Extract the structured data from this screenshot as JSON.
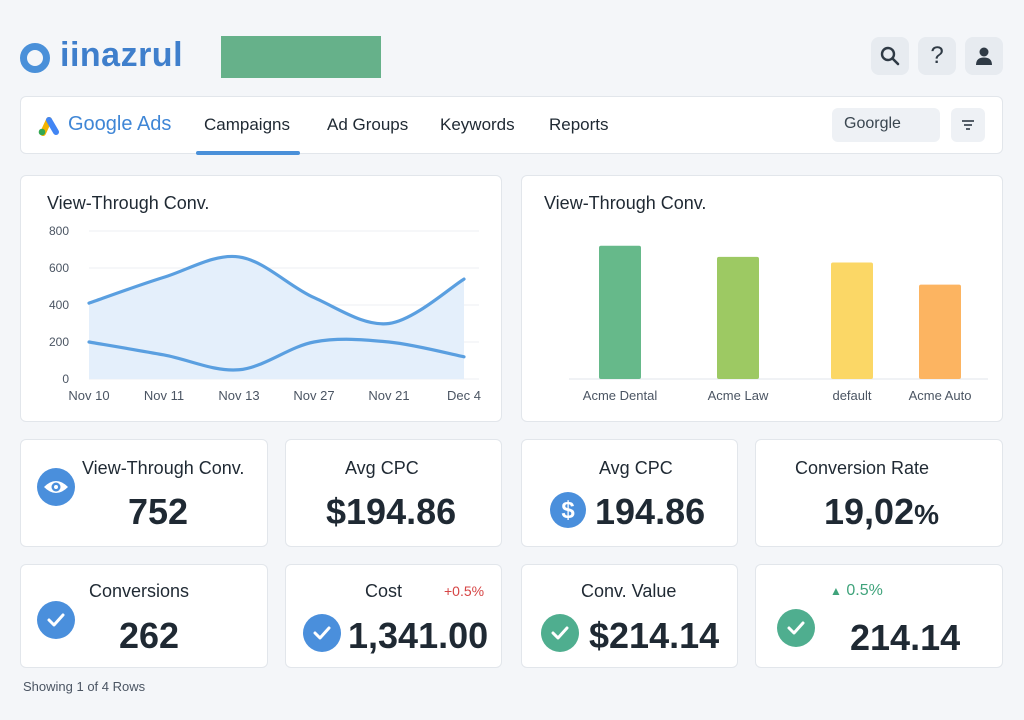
{
  "app": {
    "name": "iinazrul"
  },
  "header": {
    "icons": [
      "search-icon",
      "help-icon",
      "user-icon"
    ],
    "help_glyph": "?"
  },
  "nav": {
    "brand": "Google Ads",
    "tabs": [
      "Campaigns",
      "Ad Groups",
      "Keywords",
      "Reports"
    ],
    "active_tab": "Campaigns",
    "account_select": "Goorgle"
  },
  "line_chart": {
    "title": "View-Through Conv.",
    "chart_data": {
      "type": "line",
      "x": [
        "Nov 10",
        "Nov 11",
        "Nov 13",
        "Nov 27",
        "Nov 21",
        "Dec 4"
      ],
      "y_ticks": [
        0,
        200,
        400,
        600,
        800
      ],
      "ylim": [
        0,
        800
      ],
      "grid": true,
      "series": [
        {
          "values": [
            410,
            550,
            660,
            440,
            300,
            540
          ],
          "fill": true
        },
        {
          "values": [
            200,
            130,
            50,
            200,
            200,
            120
          ]
        }
      ],
      "colors": {
        "line": "#5a9fe0",
        "area": "#e4effb"
      }
    }
  },
  "bar_chart": {
    "title": "View-Through Conv.",
    "chart_data": {
      "type": "bar",
      "categories": [
        "Acme Dental",
        "Acme Law",
        "default",
        "Acme Auto"
      ],
      "values": [
        720,
        660,
        630,
        510
      ],
      "ylim": [
        0,
        800
      ],
      "colors": [
        "#66b98a",
        "#9dc963",
        "#fbd766",
        "#fcb461"
      ]
    }
  },
  "kpis": [
    {
      "label": "View-Through Conv.",
      "value": "752",
      "icon": "eye-icon"
    },
    {
      "label": "Avg CPC",
      "value": "$194.86"
    },
    {
      "label": "Avg CPC",
      "value": "194.86",
      "icon": "dollar-icon"
    },
    {
      "label": "Conversion Rate",
      "value": "19,02",
      "suffix": "%"
    },
    {
      "label": "Conversions",
      "value": "262",
      "icon": "check-icon"
    },
    {
      "label": "Cost",
      "value": "1,341.00",
      "delta": "+0.5%",
      "icon": "check-icon"
    },
    {
      "label": "Conv. Value",
      "value": "$214.14",
      "icon": "check-icon"
    },
    {
      "delta": "0.5%",
      "delta_arrow": "▲",
      "value": "214.14",
      "icon": "check-icon"
    }
  ],
  "footer": {
    "text": "Showing 1 of 4 Rows"
  },
  "colors": {
    "accent": "#4a90d9",
    "brand_green": "#66b18a",
    "positive": "#3fa37b",
    "negative": "#d64545"
  }
}
